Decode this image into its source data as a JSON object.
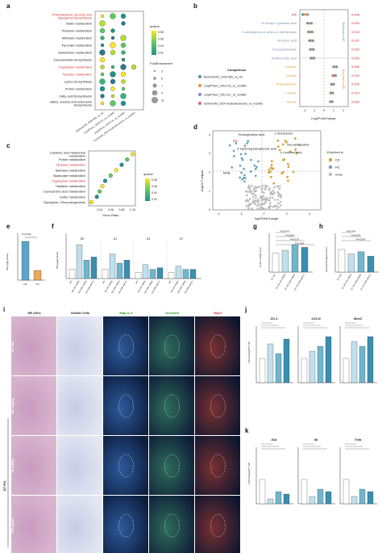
{
  "panels": {
    "a": "a",
    "b": "b",
    "c": "c",
    "d": "d",
    "e": "e",
    "f": "f",
    "g": "g",
    "h": "h",
    "i": "i",
    "j": "j",
    "k": "k"
  },
  "panel_a": {
    "pathways": [
      "Phenylalanine, tyrosine and tryptophan biosynthesis",
      "Biotin metabolism",
      "Thiamine metabolism",
      "Methane metabolism",
      "Pyruvate metabolism",
      "Glutathione metabolism",
      "Glucosinolate biosynthesis",
      "Tryptophan metabolism",
      "Tyrosine metabolism",
      "Lysine biosynthesis",
      "Purine metabolism",
      "Fatty acid biosynthesis",
      "Valine, leucine and isoleucine biosynthesis"
    ],
    "highlight": [
      true,
      false,
      false,
      false,
      false,
      false,
      false,
      true,
      true,
      false,
      false,
      false,
      false
    ],
    "datasets": [
      "BushmanFD_2020 IBD_vs_HC",
      "LloydPriceJ_2019 CD_vs_nonIBD",
      "LloydPriceJ_2019 UC_vs_nonIBD",
      "SchirmerM_2024 moderate/severe_vs_inactive"
    ],
    "qvalue_title": "qvalue",
    "qvalue_ticks": [
      "0.08",
      "0.06",
      "0.04",
      "0.02"
    ],
    "fold_title": "FoldEnrichment",
    "fold_ticks": [
      "3",
      "5",
      "7",
      "9",
      "11"
    ],
    "dots": [
      [
        1,
        1,
        1,
        0
      ],
      [
        1,
        0,
        1,
        0
      ],
      [
        1,
        1,
        0,
        0
      ],
      [
        1,
        1,
        1,
        0
      ],
      [
        1,
        1,
        1,
        0
      ],
      [
        1,
        1,
        1,
        0
      ],
      [
        1,
        0,
        1,
        0
      ],
      [
        1,
        1,
        1,
        1
      ],
      [
        1,
        1,
        1,
        0
      ],
      [
        1,
        1,
        1,
        0
      ],
      [
        1,
        1,
        1,
        0
      ],
      [
        1,
        1,
        1,
        0
      ],
      [
        1,
        1,
        1,
        0
      ]
    ]
  },
  "panel_b": {
    "metabolites": [
      "IPA",
      "N-Acetyl-L-glutamic acid",
      "5-Acetylamino-6-amino-3-methyluracil",
      "Nicotinic acid",
      "Deoxyadenosine",
      "Isolithocholic acid",
      "Creatine",
      "Choline",
      "Phenylalanine",
      "L-Valine",
      "Taurine"
    ],
    "qvalues": [
      "0.008",
      "0.004",
      "0.004",
      "0.022",
      "0.053",
      "0.065",
      "0.056",
      "0.030",
      "0.026",
      "0.010",
      "0.063"
    ],
    "values": [
      -2.2,
      -1.7,
      -1.6,
      -1.5,
      -1.4,
      -1.35,
      1.3,
      1.2,
      1.0,
      0.9,
      0.85
    ],
    "xlabel": "Log2FoldChange",
    "xticks": [
      "-2",
      "-1",
      "0",
      "1",
      "2"
    ],
    "group_hc": "Enriched in HC",
    "group_ibd": "Enriched in IBD",
    "legend_title": "Comparison",
    "legend": [
      {
        "label": "BushmanFD_2020 IBD_vs_HC",
        "color": "#4a9a8c"
      },
      {
        "label": "LloydPriceJ_2019 CD_vs_nonIBD",
        "color": "#e0913a"
      },
      {
        "label": "LloydPriceJ_2019 UC_vs_nonIBD",
        "color": "#8a86c4"
      },
      {
        "label": "SchirmerM_2024 moderate/severe_vs_inactive",
        "color": "#d9609a"
      }
    ]
  },
  "panel_c": {
    "pathways": [
      "Cysteine and methionine metabolism",
      "Purine metabolism",
      "Tyrosine metabolism",
      "Methane metabolism",
      "Butanoate metabolism",
      "Tryptophan metabolism",
      "Histidine metabolism",
      "Cyanoamino acid metabolism",
      "Sulfur metabolism",
      "Glycolysis / Gluconeogenesis"
    ],
    "highlight": [
      false,
      false,
      true,
      false,
      false,
      true,
      false,
      false,
      false,
      false
    ],
    "gene_ratio": [
      0.1,
      0.09,
      0.08,
      0.07,
      0.06,
      0.05,
      0.045,
      0.04,
      0.035,
      0.025
    ],
    "xlabel": "Gene Ratio",
    "xticks": [
      "0.04",
      "0.06",
      "0.08",
      "0.10"
    ],
    "legend_title": "qvalue",
    "legend_ticks": [
      "0.08",
      "0.06",
      "0.04",
      "0.02"
    ]
  },
  "panel_d": {
    "ylabel": "-log10 P-adjust",
    "xlabel": "log2FoldChange",
    "xticks": [
      "-4",
      "-2",
      "0",
      "2",
      "4"
    ],
    "yticks": [
      "0",
      "1",
      "2",
      "3",
      "4"
    ],
    "labels": [
      "Homogentisic acid",
      "IPA",
      "4-Hydroxyphenylacetic acid",
      "BHB",
      "L-Norleucine",
      "Norvaline",
      "Cystine",
      "L-Leucine(Leu)"
    ],
    "legend_title": "Enriched in",
    "legend": [
      {
        "label": "CD",
        "color": "#d4a43a"
      },
      {
        "label": "HC",
        "color": "#6fa6c0"
      },
      {
        "label": "none",
        "color": "#bdbdbd"
      }
    ]
  },
  "panel_e": {
    "ylabel": "IPA (µg/g feces)",
    "pvalue": "P=0.0138",
    "groups": [
      "HC",
      "CD"
    ],
    "values": [
      0.6,
      0.15
    ]
  },
  "panel_f": {
    "ylabel": "IPA (µg/g feces)",
    "days": [
      "D0",
      "D1",
      "D3",
      "D7"
    ],
    "groups": [
      "Veh",
      "IPA (20 mg/kg)",
      "IPA (200 mg/kg)",
      "IPA (200 µg/mL)"
    ],
    "colors": [
      "#ffffff",
      "#bfe0ec",
      "#6fb6cf",
      "#3a8fb0"
    ],
    "values": [
      [
        0.3,
        1.1,
        0.6,
        0.7
      ],
      [
        0.3,
        0.8,
        0.5,
        0.6
      ],
      [
        0.2,
        0.45,
        0.3,
        0.35
      ],
      [
        0.2,
        0.4,
        0.3,
        0.3
      ]
    ]
  },
  "panel_g": {
    "ylabel": "Colon Length (cm)",
    "groups": [
      "D7 Veh",
      "D7 IPA (20 mg/kg)",
      "D7 IPA (200 mg/kg)",
      "D7 IPA (200 µg/mL)"
    ],
    "values": [
      5.2,
      6.0,
      7.5,
      6.8
    ],
    "pvals": [
      "P<0.0001",
      "P<0.0001",
      "P=0.0173",
      "P=0.0006"
    ]
  },
  "panel_h": {
    "ylabel": "Histopathological score",
    "groups": [
      "D7 Veh",
      "D7 IPA (20 mg/kg)",
      "D7 IPA (200 mg/kg)",
      "D7 IPA (200 µg/mL)"
    ],
    "values": [
      10,
      8,
      9,
      7
    ],
    "pvals": [
      "P=0.0024",
      "P=0.0370",
      "P=0.0076"
    ]
  },
  "panel_i": {
    "columns": [
      "HE (40×)",
      "Goblet Cells",
      "Map IL-6",
      "Occludin",
      "Muc2"
    ],
    "rows": [
      "D7 Veh",
      "200 mg/kg",
      "20 mg/kg",
      "200 µg/mL"
    ],
    "row_group": "D7 IPA"
  },
  "panel_j": {
    "ylabel": "Fold change/D7 Veh",
    "genes": [
      "ZO-1",
      "OCLN",
      "Muc2"
    ],
    "values": [
      [
        1,
        1.6,
        1.2,
        1.8
      ],
      [
        1,
        1.3,
        1.5,
        1.9
      ],
      [
        1,
        1.7,
        1.5,
        1.9
      ]
    ]
  },
  "panel_k": {
    "ylabel": "Fold change/D7 Veh",
    "genes": [
      "Il1b",
      "Il6",
      "Tnfa"
    ],
    "values": [
      [
        1,
        0.2,
        0.5,
        0.4
      ],
      [
        1,
        0.3,
        0.6,
        0.5
      ],
      [
        1,
        0.3,
        0.6,
        0.5
      ]
    ]
  },
  "colors": {
    "red": "#d02a2a",
    "bar_light": "#cfe6ef",
    "bar_mid": "#8fc3d6",
    "bar_dark": "#3a8fb0",
    "qlow": "#1f9e89",
    "qhigh": "#fde725"
  }
}
